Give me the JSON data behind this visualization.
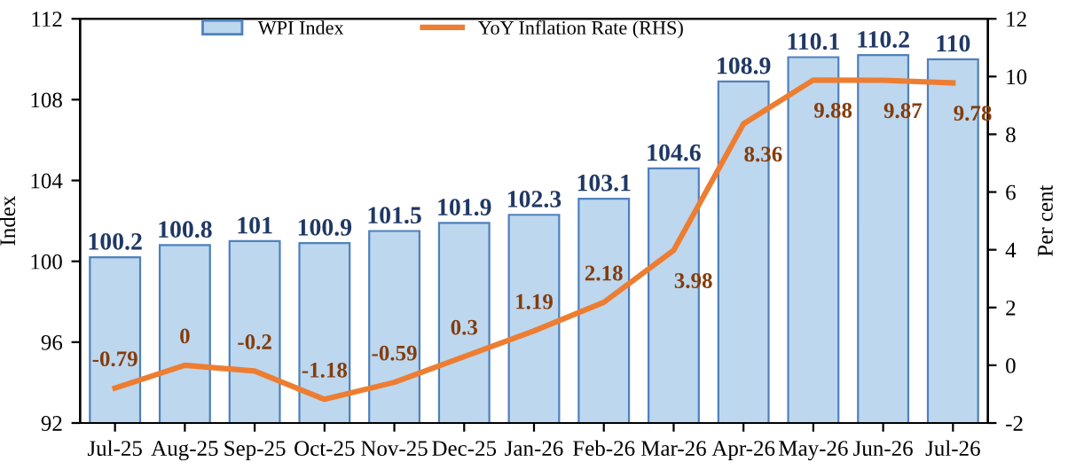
{
  "chart_data": {
    "type": "bar",
    "categories": [
      "Jul-25",
      "Aug-25",
      "Sep-25",
      "Oct-25",
      "Nov-25",
      "Dec-25",
      "Jan-26",
      "Feb-26",
      "Mar-26",
      "Apr-26",
      "May-26",
      "Jun-26",
      "Jul-26"
    ],
    "series": [
      {
        "name": "WPI Index",
        "color": "#bdd7ee",
        "values": [
          100.2,
          100.8,
          101,
          100.9,
          101.5,
          101.9,
          102.3,
          103.1,
          104.6,
          108.9,
          110.1,
          110.2,
          110
        ]
      },
      {
        "name": "YoY Inflation Rate (RHS)",
        "type": "line",
        "axis": "y2",
        "color": "#ed7d31",
        "values": [
          -0.79,
          0,
          -0.2,
          -1.18,
          -0.59,
          0.3,
          1.19,
          2.18,
          3.98,
          8.36,
          9.88,
          9.87,
          9.78
        ]
      }
    ],
    "ylabel": "Index",
    "y2label": "Per cent",
    "ylim": [
      92,
      112
    ],
    "yticks": [
      92,
      96,
      100,
      104,
      108,
      112
    ],
    "y2lim": [
      -2,
      12
    ],
    "y2ticks": [
      -2,
      0,
      2,
      4,
      6,
      8,
      10,
      12
    ],
    "data_labels": true,
    "legend": "top",
    "grid": false,
    "marker": "none",
    "line_style": "solid"
  }
}
